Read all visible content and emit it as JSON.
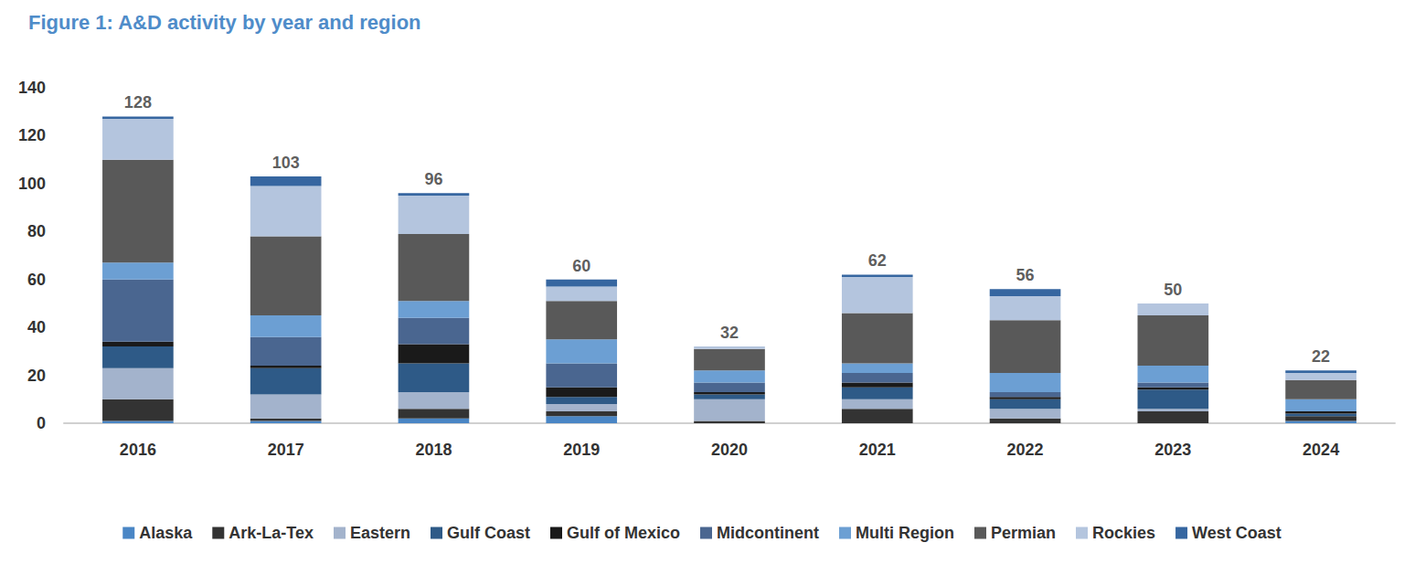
{
  "chart_data": {
    "type": "bar",
    "title": "Figure 1: A&D activity by year and region",
    "categories": [
      "2016",
      "2017",
      "2018",
      "2019",
      "2020",
      "2021",
      "2022",
      "2023",
      "2024"
    ],
    "series": [
      {
        "name": "Alaska",
        "color": "#4A86C5",
        "values": [
          1,
          1,
          2,
          3,
          0,
          0,
          0,
          0,
          1
        ]
      },
      {
        "name": "Ark-La-Tex",
        "color": "#333333",
        "values": [
          9,
          1,
          4,
          2,
          1,
          6,
          2,
          5,
          2
        ]
      },
      {
        "name": "Eastern",
        "color": "#A3B3CC",
        "values": [
          13,
          10,
          7,
          3,
          9,
          4,
          4,
          1,
          0
        ]
      },
      {
        "name": "Gulf Coast",
        "color": "#2E5A87",
        "values": [
          9,
          11,
          12,
          3,
          2,
          5,
          4,
          8,
          1
        ]
      },
      {
        "name": "Gulf of Mexico",
        "color": "#1A1A1A",
        "values": [
          2,
          1,
          8,
          4,
          1,
          2,
          1,
          1,
          1
        ]
      },
      {
        "name": "Midcontinent",
        "color": "#4A6690",
        "values": [
          26,
          12,
          11,
          10,
          4,
          4,
          2,
          2,
          0
        ]
      },
      {
        "name": "Multi Region",
        "color": "#6C9FD3",
        "values": [
          7,
          9,
          7,
          10,
          5,
          4,
          8,
          7,
          5
        ]
      },
      {
        "name": "Permian",
        "color": "#595959",
        "values": [
          43,
          33,
          28,
          16,
          9,
          21,
          22,
          21,
          8
        ]
      },
      {
        "name": "Rockies",
        "color": "#B4C5DE",
        "values": [
          17,
          21,
          16,
          6,
          1,
          15,
          10,
          5,
          3
        ]
      },
      {
        "name": "West Coast",
        "color": "#3666A0",
        "values": [
          1,
          4,
          1,
          3,
          0,
          1,
          3,
          0,
          1
        ]
      }
    ],
    "totals": [
      128,
      103,
      96,
      60,
      32,
      62,
      56,
      50,
      22
    ],
    "ylim": [
      0,
      140
    ],
    "yticks": [
      0,
      20,
      40,
      60,
      80,
      100,
      120,
      140
    ],
    "grid": false,
    "stacked": true,
    "legend": "bottom",
    "data_labels": false
  }
}
